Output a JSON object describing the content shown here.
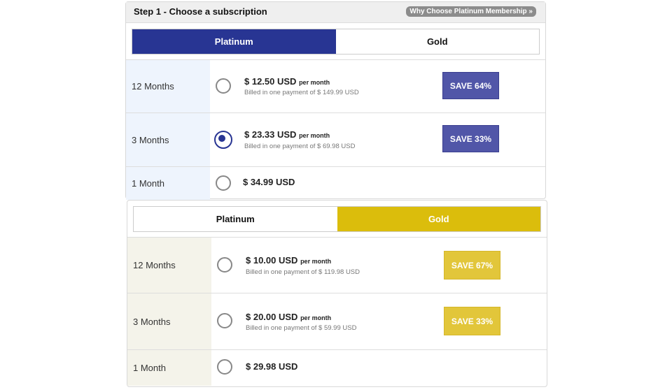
{
  "step_title": "Step 1 - Choose a subscription",
  "why_link": "Why Choose Platinum Membership »",
  "colors": {
    "platinum": "#283593",
    "gold": "#dbbd0c"
  },
  "platinum": {
    "tabs": [
      "Platinum",
      "Gold"
    ],
    "active_tab": "Platinum",
    "plans": [
      {
        "term": "12 Months",
        "price": "$ 12.50 USD",
        "unit": "per month",
        "billed": "Billed in one payment of $ 149.99 USD",
        "save": "SAVE 64%",
        "selected": false
      },
      {
        "term": "3 Months",
        "price": "$ 23.33 USD",
        "unit": "per month",
        "billed": "Billed in one payment of $ 69.98 USD",
        "save": "SAVE 33%",
        "selected": true
      },
      {
        "term": "1 Month",
        "price": "$ 34.99 USD",
        "selected": false
      }
    ]
  },
  "gold": {
    "tabs": [
      "Platinum",
      "Gold"
    ],
    "active_tab": "Gold",
    "plans": [
      {
        "term": "12 Months",
        "price": "$ 10.00 USD",
        "unit": "per month",
        "billed": "Billed in one payment of $ 119.98 USD",
        "save": "SAVE 67%",
        "selected": false
      },
      {
        "term": "3 Months",
        "price": "$ 20.00 USD",
        "unit": "per month",
        "billed": "Billed in one payment of $ 59.99 USD",
        "save": "SAVE 33%",
        "selected": false
      },
      {
        "term": "1 Month",
        "price": "$ 29.98 USD",
        "selected": false
      }
    ]
  }
}
